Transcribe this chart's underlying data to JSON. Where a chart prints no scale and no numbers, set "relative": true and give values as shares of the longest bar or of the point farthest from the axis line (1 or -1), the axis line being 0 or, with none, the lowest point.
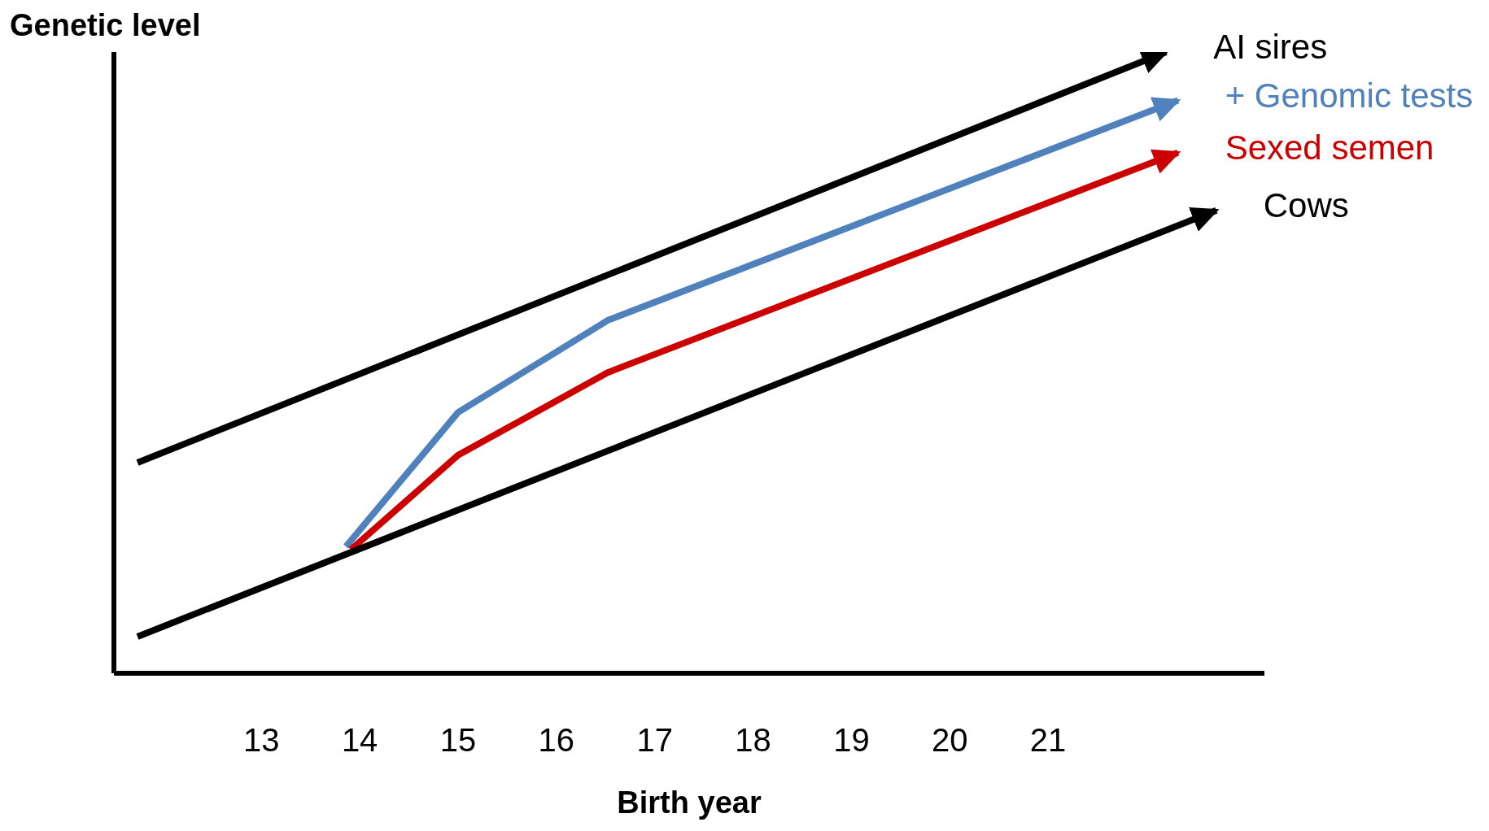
{
  "chart_data": {
    "type": "line",
    "relative": true,
    "xlabel": "Birth year",
    "ylabel": "Genetic level",
    "xlim": [
      11.5,
      23.2
    ],
    "xticks": [
      13,
      14,
      15,
      16,
      17,
      18,
      19,
      20,
      21
    ],
    "legend": "top right",
    "grid": false,
    "marker": "none",
    "line_style": "solid",
    "series": [
      {
        "name": "AI sires",
        "color": "#000000",
        "x": [
          11.74,
          22.2
        ],
        "values": [
          0.339,
          1.0
        ]
      },
      {
        "name": "+ Genomic tests",
        "color": "#4f81bd",
        "x": [
          13.86,
          15,
          16.52,
          22.32
        ],
        "values": [
          0.204,
          0.42,
          0.568,
          0.922
        ]
      },
      {
        "name": "Sexed semen",
        "color": "#cc0000",
        "x": [
          13.91,
          15,
          16.52,
          22.32
        ],
        "values": [
          0.199,
          0.351,
          0.484,
          0.838
        ]
      },
      {
        "name": "Cows",
        "color": "#000000",
        "x": [
          11.74,
          22.71
        ],
        "values": [
          0.059,
          0.745
        ]
      }
    ]
  }
}
